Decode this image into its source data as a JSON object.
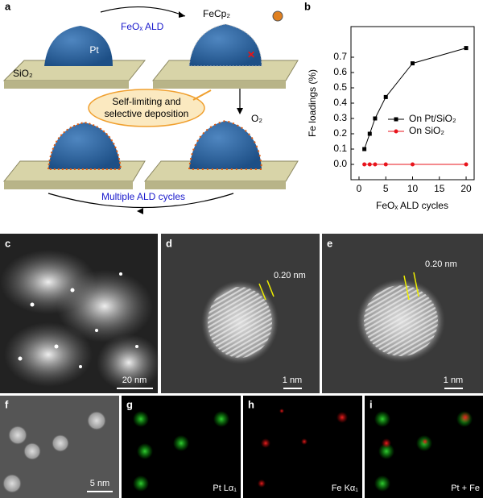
{
  "panel_labels": [
    "a",
    "b",
    "c",
    "d",
    "e",
    "f",
    "g",
    "h",
    "i"
  ],
  "scheme": {
    "pt": "Pt",
    "support": "SiO₂",
    "ald": "FeOₓ ALD",
    "precursor": "FeCp₂",
    "callout": [
      "Self-limiting and",
      "selective deposition"
    ],
    "oxidant": "O₂",
    "cycles": "Multiple ALD cycles"
  },
  "images": {
    "c_scale": "20 nm",
    "d_spacing": "0.20 nm",
    "d_scale": "1 nm",
    "e_spacing": "0.20 nm",
    "e_scale": "1 nm",
    "f_scale": "5 nm",
    "g_label": "Pt Lα₁",
    "h_label": "Fe Kα₁",
    "i_label": "Pt + Fe"
  },
  "chart_data": {
    "type": "line",
    "xlabel": "FeOₓ ALD cycles",
    "ylabel": "Fe loadings (%)",
    "x": [
      1,
      2,
      3,
      5,
      10,
      20
    ],
    "series": [
      {
        "name": "On Pt/SiO₂",
        "color": "#000000",
        "marker": "square",
        "values": [
          0.1,
          0.2,
          0.3,
          0.44,
          0.66,
          0.76
        ]
      },
      {
        "name": "On SiO₂",
        "color": "#e8141c",
        "marker": "circle",
        "values": [
          0.0,
          0.0,
          0.0,
          0.0,
          0.0,
          0.0
        ]
      }
    ],
    "xlim": [
      -1.5,
      21.5
    ],
    "ylim": [
      -0.1,
      0.9
    ],
    "xticks": [
      0,
      5,
      10,
      15,
      20
    ],
    "yticks": [
      {
        "value": 0,
        "label": "0.0"
      },
      {
        "value": 0.1,
        "label": "0.1"
      },
      {
        "value": 0.2,
        "label": "0.2"
      },
      {
        "value": 0.3,
        "label": "0.3"
      },
      {
        "value": 0.4,
        "label": "0.4"
      },
      {
        "value": 0.5,
        "label": "0.5"
      },
      {
        "value": 0.6,
        "label": "0.6"
      },
      {
        "value": 0.7,
        "label": "0.7"
      }
    ],
    "legend": "right"
  }
}
